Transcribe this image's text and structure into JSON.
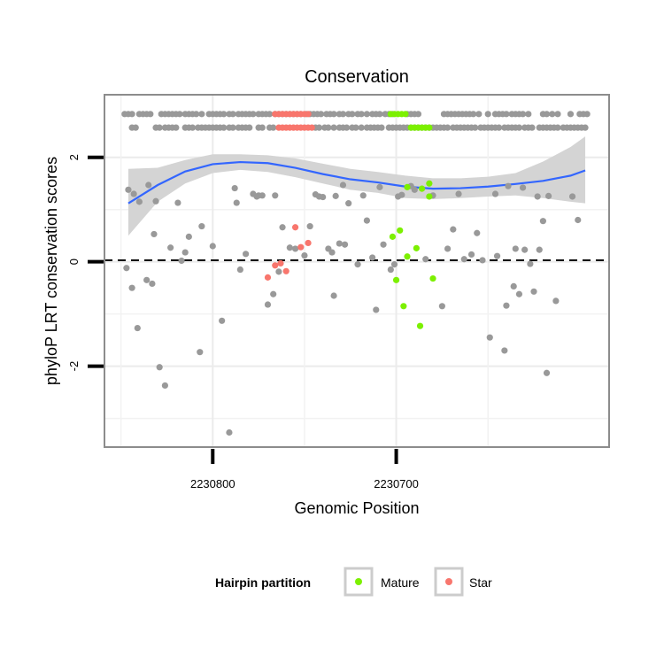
{
  "chart_data": {
    "type": "scatter",
    "title": "Conservation",
    "xlabel": "Genomic Position",
    "ylabel": "phyloP LRT conservation scores",
    "x_reversed": true,
    "xlim": [
      2230859,
      2230584
    ],
    "ylim": [
      -3.55,
      3.2
    ],
    "x_ticks": [
      2230800,
      2230700
    ],
    "y_ticks": [
      -2,
      0,
      2
    ],
    "grid": true,
    "reference_line_y": 0,
    "legend": {
      "title": "Hairpin partition",
      "position": "bottom",
      "entries": [
        {
          "label": "Mature",
          "color": "#7CF000"
        },
        {
          "label": "Star",
          "color": "#F8766D"
        }
      ]
    },
    "colors": {
      "other": "#999999",
      "mature": "#7CF000",
      "star": "#F8766D",
      "smooth": "#3366FF",
      "band": "#d4d4d4"
    },
    "smooth_curve": {
      "x": [
        2230846,
        2230830,
        2230815,
        2230800,
        2230785,
        2230770,
        2230755,
        2230740,
        2230725,
        2230710,
        2230695,
        2230680,
        2230665,
        2230650,
        2230635,
        2230620,
        2230605,
        2230597
      ],
      "y": [
        1.12,
        1.47,
        1.73,
        1.87,
        1.91,
        1.89,
        1.8,
        1.68,
        1.58,
        1.52,
        1.44,
        1.4,
        1.41,
        1.44,
        1.49,
        1.55,
        1.65,
        1.75
      ],
      "lower": [
        0.5,
        1.15,
        1.5,
        1.7,
        1.76,
        1.72,
        1.62,
        1.5,
        1.38,
        1.32,
        1.22,
        1.2,
        1.22,
        1.25,
        1.27,
        1.22,
        1.15,
        1.12
      ],
      "upper": [
        1.78,
        1.8,
        1.95,
        2.06,
        2.06,
        2.04,
        1.98,
        1.88,
        1.78,
        1.72,
        1.65,
        1.6,
        1.6,
        1.63,
        1.7,
        1.92,
        2.2,
        2.4
      ]
    },
    "rug_rows": {
      "y": [
        2.83,
        2.57
      ],
      "row_1": {
        "other": [
          2230848,
          2230846,
          2230844,
          2230840,
          2230838,
          2230836,
          2230834,
          2230828,
          2230826,
          2230824,
          2230822,
          2230820,
          2230818,
          2230815,
          2230813,
          2230811,
          2230809,
          2230806,
          2230802,
          2230800,
          2230798,
          2230796,
          2230794,
          2230791,
          2230789,
          2230786,
          2230784,
          2230782,
          2230780,
          2230778,
          2230775,
          2230773,
          2230771,
          2230769,
          2230766,
          2230764,
          2230762,
          2230760,
          2230758,
          2230756,
          2230754,
          2230752,
          2230749,
          2230747,
          2230745,
          2230743,
          2230741,
          2230738,
          2230736,
          2230734,
          2230731,
          2230729,
          2230726,
          2230724,
          2230721,
          2230719,
          2230716,
          2230713,
          2230711,
          2230709,
          2230706,
          2230704,
          2230702,
          2230694,
          2230692,
          2230690,
          2230688,
          2230674,
          2230672,
          2230670,
          2230668,
          2230666,
          2230664,
          2230662,
          2230660,
          2230658,
          2230655,
          2230650,
          2230646,
          2230644,
          2230642,
          2230640,
          2230637,
          2230635,
          2230633,
          2230631,
          2230628,
          2230620,
          2230618,
          2230615,
          2230612,
          2230605,
          2230600,
          2230598,
          2230596
        ],
        "mature": [
          2230703,
          2230701,
          2230699,
          2230697,
          2230695
        ],
        "star": [
          2230766,
          2230764,
          2230762,
          2230760,
          2230758,
          2230756,
          2230754,
          2230752,
          2230750,
          2230748
        ]
      },
      "row_2": {
        "other": [
          2230844,
          2230842,
          2230831,
          2230829,
          2230826,
          2230824,
          2230822,
          2230820,
          2230815,
          2230813,
          2230811,
          2230808,
          2230806,
          2230804,
          2230802,
          2230800,
          2230798,
          2230796,
          2230794,
          2230791,
          2230789,
          2230786,
          2230784,
          2230782,
          2230780,
          2230775,
          2230773,
          2230769,
          2230767,
          2230744,
          2230742,
          2230739,
          2230737,
          2230734,
          2230731,
          2230729,
          2230727,
          2230724,
          2230722,
          2230719,
          2230716,
          2230714,
          2230712,
          2230710,
          2230708,
          2230704,
          2230702,
          2230700,
          2230698,
          2230696,
          2230694,
          2230692,
          2230690,
          2230688,
          2230686,
          2230684,
          2230682,
          2230680,
          2230678,
          2230676,
          2230674,
          2230672,
          2230669,
          2230667,
          2230665,
          2230663,
          2230661,
          2230659,
          2230657,
          2230654,
          2230652,
          2230650,
          2230648,
          2230646,
          2230644,
          2230641,
          2230639,
          2230637,
          2230635,
          2230633,
          2230630,
          2230628,
          2230626,
          2230622,
          2230620,
          2230618,
          2230616,
          2230614,
          2230612,
          2230609,
          2230607,
          2230605,
          2230603,
          2230601,
          2230599,
          2230597
        ],
        "mature": [
          2230692,
          2230690,
          2230688,
          2230686,
          2230684,
          2230682
        ],
        "star": [
          2230764,
          2230762,
          2230760,
          2230758,
          2230756,
          2230754,
          2230752,
          2230750,
          2230748,
          2230746
        ]
      }
    },
    "series": [
      {
        "name": "Mature",
        "color": "#7CF000",
        "points": [
          [
            2230702,
            0.48
          ],
          [
            2230698,
            0.6
          ],
          [
            2230694,
            0.1
          ],
          [
            2230689,
            0.26
          ],
          [
            2230686,
            1.4
          ],
          [
            2230682,
            1.25
          ],
          [
            2230700,
            -0.35
          ],
          [
            2230696,
            -0.85
          ],
          [
            2230687,
            -1.23
          ],
          [
            2230680,
            -0.32
          ],
          [
            2230682,
            1.5
          ],
          [
            2230694,
            1.43
          ]
        ]
      },
      {
        "name": "Star",
        "color": "#F8766D",
        "points": [
          [
            2230770,
            -0.3
          ],
          [
            2230766,
            -0.07
          ],
          [
            2230763,
            -0.03
          ],
          [
            2230760,
            -0.18
          ],
          [
            2230755,
            0.66
          ],
          [
            2230752,
            0.28
          ],
          [
            2230748,
            0.36
          ]
        ]
      },
      {
        "name": "",
        "color": "#999999",
        "points": [
          [
            2230847,
            -0.12
          ],
          [
            2230846,
            1.38
          ],
          [
            2230844,
            -0.5
          ],
          [
            2230843,
            1.3
          ],
          [
            2230841,
            -1.27
          ],
          [
            2230840,
            1.15
          ],
          [
            2230836,
            -0.35
          ],
          [
            2230835,
            1.47
          ],
          [
            2230833,
            -0.42
          ],
          [
            2230832,
            0.53
          ],
          [
            2230831,
            1.16
          ],
          [
            2230829,
            -2.02
          ],
          [
            2230826,
            -2.37
          ],
          [
            2230823,
            0.27
          ],
          [
            2230819,
            1.13
          ],
          [
            2230817,
            0.02
          ],
          [
            2230815,
            0.18
          ],
          [
            2230813,
            0.48
          ],
          [
            2230807,
            -1.73
          ],
          [
            2230806,
            0.68
          ],
          [
            2230800,
            0.3
          ],
          [
            2230795,
            -1.13
          ],
          [
            2230791,
            -3.27
          ],
          [
            2230788,
            1.41
          ],
          [
            2230787,
            1.13
          ],
          [
            2230785,
            -0.15
          ],
          [
            2230782,
            0.15
          ],
          [
            2230778,
            1.3
          ],
          [
            2230776,
            1.25
          ],
          [
            2230775,
            1.27
          ],
          [
            2230773,
            1.27
          ],
          [
            2230770,
            -0.82
          ],
          [
            2230767,
            -0.62
          ],
          [
            2230766,
            1.27
          ],
          [
            2230764,
            -0.19
          ],
          [
            2230762,
            0.66
          ],
          [
            2230758,
            0.27
          ],
          [
            2230755,
            0.25
          ],
          [
            2230750,
            0.12
          ],
          [
            2230747,
            0.68
          ],
          [
            2230744,
            1.29
          ],
          [
            2230742,
            1.25
          ],
          [
            2230740,
            1.24
          ],
          [
            2230737,
            0.25
          ],
          [
            2230735,
            0.18
          ],
          [
            2230734,
            -0.65
          ],
          [
            2230733,
            1.26
          ],
          [
            2230731,
            0.35
          ],
          [
            2230729,
            1.47
          ],
          [
            2230728,
            0.33
          ],
          [
            2230726,
            1.12
          ],
          [
            2230721,
            -0.05
          ],
          [
            2230718,
            1.27
          ],
          [
            2230716,
            0.79
          ],
          [
            2230713,
            0.08
          ],
          [
            2230711,
            -0.92
          ],
          [
            2230709,
            1.43
          ],
          [
            2230707,
            0.33
          ],
          [
            2230703,
            -0.15
          ],
          [
            2230701,
            -0.05
          ],
          [
            2230699,
            1.25
          ],
          [
            2230697,
            1.28
          ],
          [
            2230692,
            1.45
          ],
          [
            2230690,
            1.38
          ],
          [
            2230684,
            0.05
          ],
          [
            2230680,
            1.27
          ],
          [
            2230675,
            -0.85
          ],
          [
            2230672,
            0.25
          ],
          [
            2230669,
            0.62
          ],
          [
            2230666,
            1.3
          ],
          [
            2230663,
            0.05
          ],
          [
            2230659,
            0.14
          ],
          [
            2230656,
            0.55
          ],
          [
            2230653,
            0.03
          ],
          [
            2230649,
            -1.45
          ],
          [
            2230646,
            1.3
          ],
          [
            2230645,
            0.11
          ],
          [
            2230641,
            -1.7
          ],
          [
            2230640,
            -0.84
          ],
          [
            2230639,
            1.45
          ],
          [
            2230636,
            -0.47
          ],
          [
            2230635,
            0.25
          ],
          [
            2230633,
            -0.62
          ],
          [
            2230631,
            1.42
          ],
          [
            2230630,
            0.23
          ],
          [
            2230627,
            -0.04
          ],
          [
            2230625,
            -0.57
          ],
          [
            2230623,
            1.25
          ],
          [
            2230622,
            0.23
          ],
          [
            2230620,
            0.78
          ],
          [
            2230618,
            -2.13
          ],
          [
            2230617,
            1.26
          ],
          [
            2230613,
            -0.75
          ],
          [
            2230604,
            1.25
          ],
          [
            2230601,
            0.8
          ]
        ]
      }
    ]
  }
}
